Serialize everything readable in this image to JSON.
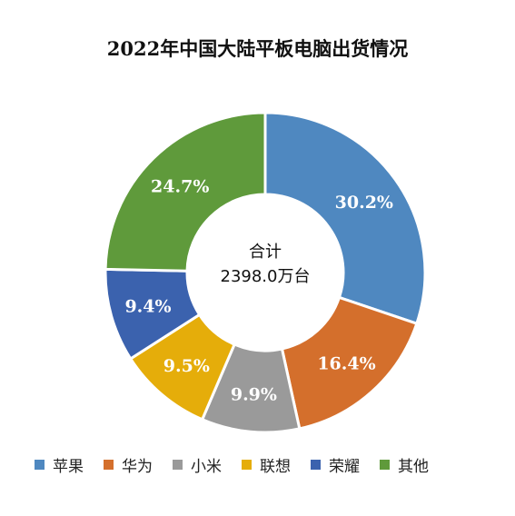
{
  "chart_data": {
    "type": "pie",
    "variant": "donut",
    "title": "2022年中国大陆平板电脑出货情况",
    "categories": [
      "苹果",
      "华为",
      "小米",
      "联想",
      "荣耀",
      "其他"
    ],
    "values": [
      30.2,
      16.4,
      9.9,
      9.5,
      9.4,
      24.7
    ],
    "labels": [
      "30.2%",
      "16.4%",
      "9.9%",
      "9.5%",
      "9.4%",
      "24.7%"
    ],
    "colors": [
      "#4f88c0",
      "#d46f2c",
      "#9a9a9a",
      "#e5ad0a",
      "#3b62ae",
      "#5f9a3b"
    ],
    "center_text": [
      "合计",
      "2398.0万台"
    ],
    "legend_position": "bottom"
  }
}
